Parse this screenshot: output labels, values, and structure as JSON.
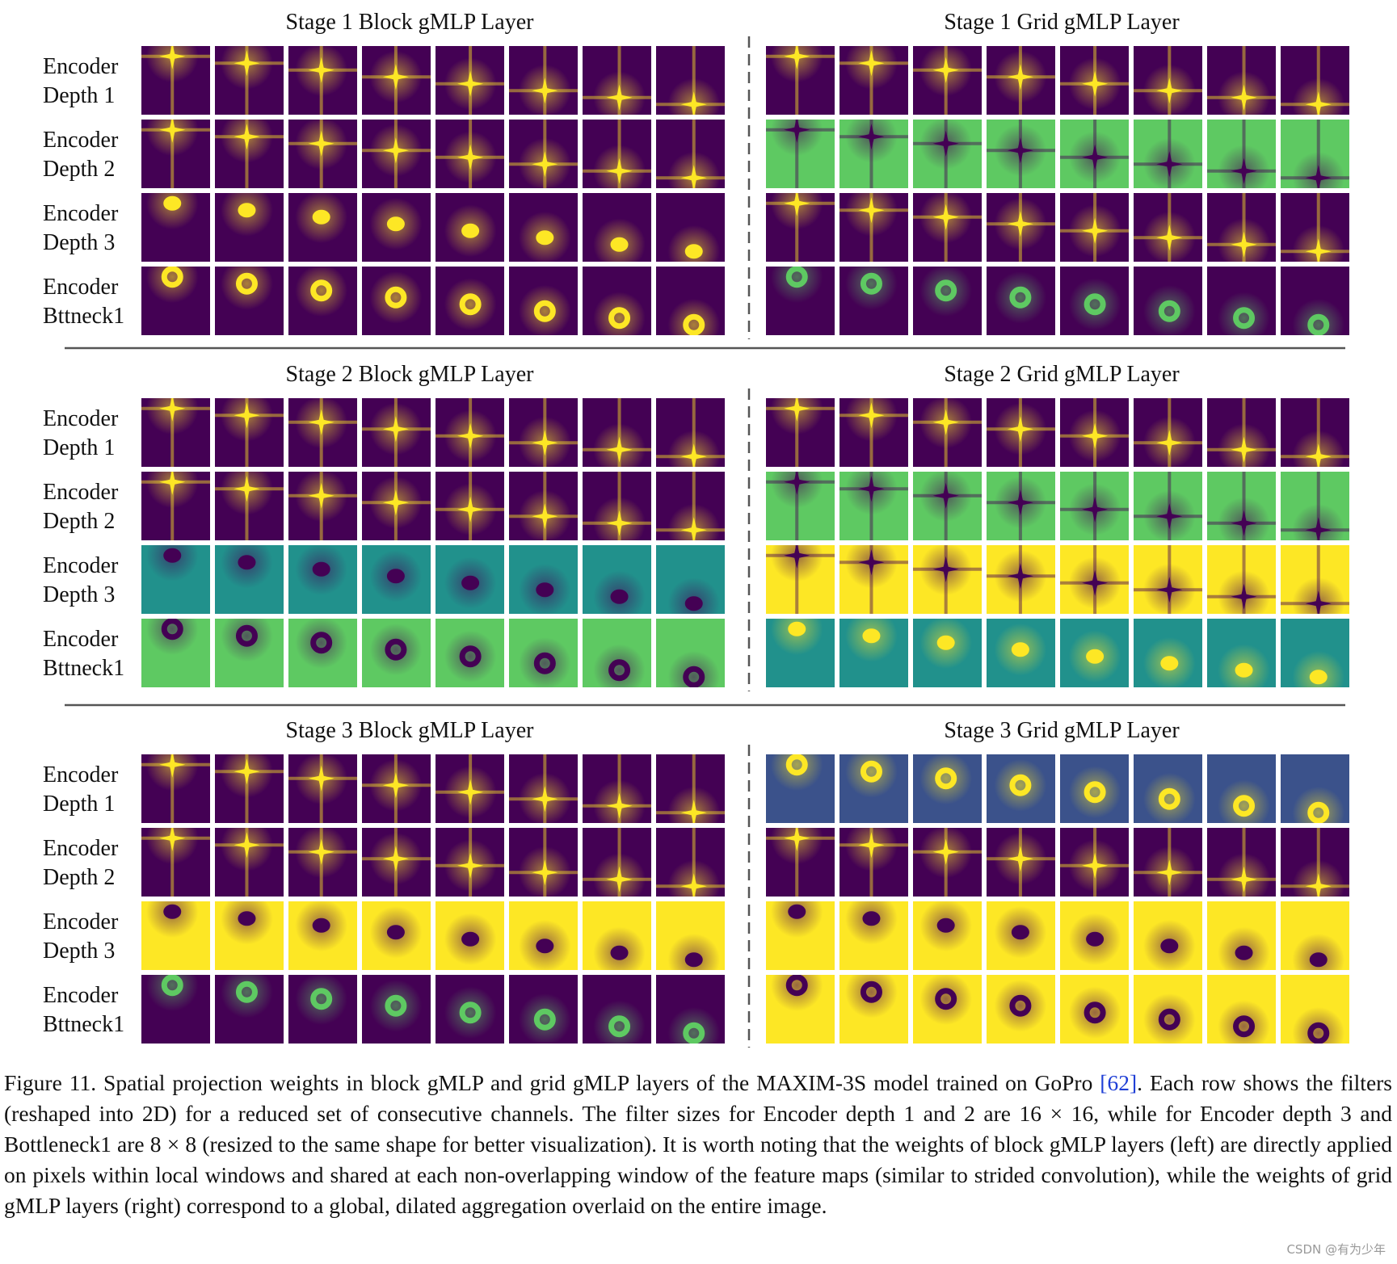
{
  "stages": [
    {
      "block_title": "Stage 1 Block gMLP Layer",
      "grid_title": "Stage 1 Grid gMLP Layer",
      "row_labels": [
        [
          "Encoder",
          "Depth 1"
        ],
        [
          "Encoder",
          "Depth 2"
        ],
        [
          "Encoder",
          "Depth 3"
        ],
        [
          "Encoder",
          "Bttneck1"
        ]
      ]
    },
    {
      "block_title": "Stage 2 Block gMLP Layer",
      "grid_title": "Stage 2 Grid gMLP Layer",
      "row_labels": [
        [
          "Encoder",
          "Depth 1"
        ],
        [
          "Encoder",
          "Depth 2"
        ],
        [
          "Encoder",
          "Depth 3"
        ],
        [
          "Encoder",
          "Bttneck1"
        ]
      ]
    },
    {
      "block_title": "Stage 3 Block gMLP Layer",
      "grid_title": "Stage 3 Grid gMLP Layer",
      "row_labels": [
        [
          "Encoder",
          "Depth 1"
        ],
        [
          "Encoder",
          "Depth 2"
        ],
        [
          "Encoder",
          "Depth 3"
        ],
        [
          "Encoder",
          "Bttneck1"
        ]
      ]
    }
  ],
  "caption": {
    "before": "Figure 11. Spatial projection weights in block gMLP and grid gMLP layers of the MAXIM-3S model trained on GoPro ",
    "citation": "[62]",
    "after": ". Each row shows the filters (reshaped into 2D) for a reduced set of consecutive channels. The filter sizes for Encoder depth 1 and 2 are 16 × 16, while for Encoder depth 3 and Bottleneck1 are 8 × 8 (resized to the same shape for better visualization). It is worth noting that the weights of block gMLP layers (left) are directly applied on pixels within local windows and shared at each non-overlapping window of the feature maps (similar to strided convolution), while the weights of grid gMLP layers (right) correspond to a global, dilated aggregation overlaid on the entire image."
  },
  "watermark": "CSDN @有为少年"
}
